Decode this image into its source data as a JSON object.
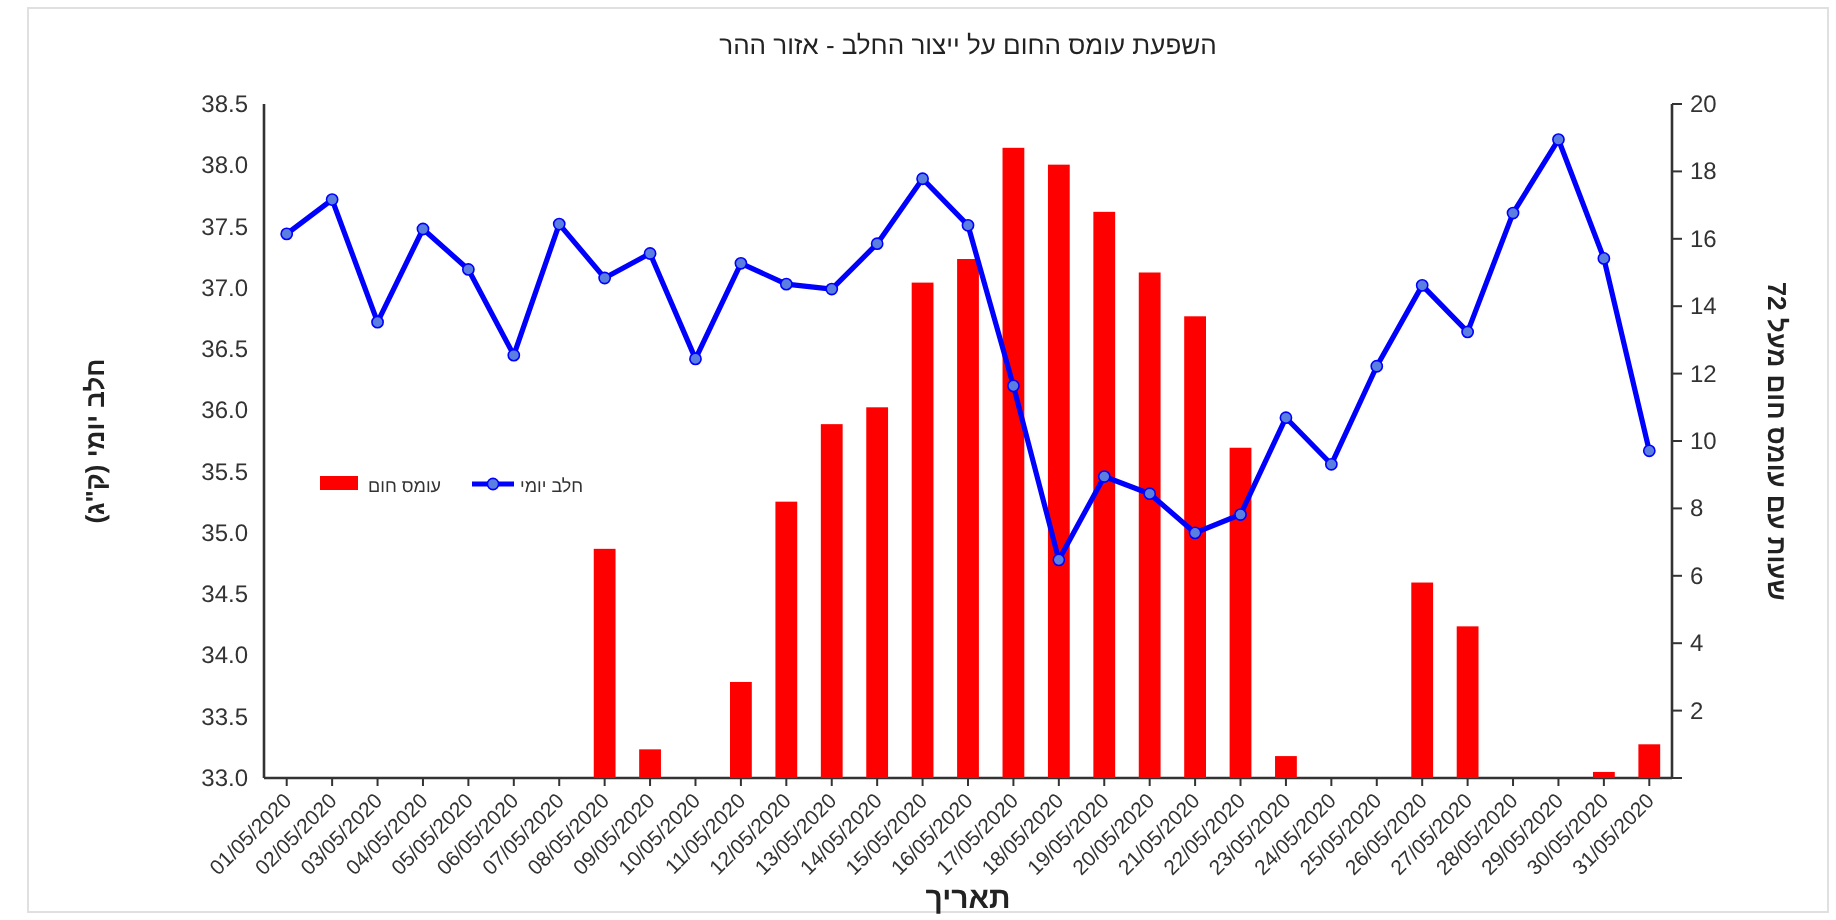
{
  "chart_data": {
    "type": "bar",
    "title": "השפעת עומס החום על ייצור החלב  - אזור ההר",
    "xlabel": "תאריך",
    "ylabel": "חלב יומי (ק\"ג)",
    "y2label": "שעות עם עומס חום מעל 72",
    "categories": [
      "01/05/2020",
      "02/05/2020",
      "03/05/2020",
      "04/05/2020",
      "05/05/2020",
      "06/05/2020",
      "07/05/2020",
      "08/05/2020",
      "09/05/2020",
      "10/05/2020",
      "11/05/2020",
      "12/05/2020",
      "13/05/2020",
      "14/05/2020",
      "15/05/2020",
      "16/05/2020",
      "17/05/2020",
      "18/05/2020",
      "19/05/2020",
      "20/05/2020",
      "21/05/2020",
      "22/05/2020",
      "23/05/2020",
      "24/05/2020",
      "25/05/2020",
      "26/05/2020",
      "27/05/2020",
      "28/05/2020",
      "29/05/2020",
      "30/05/2020",
      "31/05/2020"
    ],
    "series": [
      {
        "name": "עומס חום",
        "axis": "y2",
        "color": "#ff0000",
        "values": [
          0,
          0,
          0,
          0,
          0,
          0,
          0,
          6.8,
          0.85,
          0,
          2.85,
          8.2,
          10.5,
          11.0,
          14.7,
          15.4,
          18.7,
          18.2,
          16.8,
          15.0,
          13.7,
          9.8,
          0.65,
          0,
          0,
          5.8,
          4.5,
          0,
          0,
          0.18,
          1.0
        ]
      },
      {
        "name": "חלב יומי",
        "type": "line",
        "color": "#0000ff",
        "values": [
          37.44,
          37.72,
          36.72,
          37.48,
          37.15,
          36.45,
          37.52,
          37.08,
          37.28,
          36.42,
          37.2,
          37.03,
          36.99,
          37.36,
          37.89,
          37.51,
          36.2,
          34.78,
          35.46,
          35.32,
          35.0,
          35.15,
          35.94,
          35.56,
          36.36,
          37.02,
          36.64,
          37.61,
          38.21,
          37.24,
          35.67
        ]
      }
    ],
    "ylim": [
      33.0,
      38.5
    ],
    "yticks": [
      {
        "value": 33,
        "label": "33.0"
      },
      {
        "value": 33.5,
        "label": "33.5"
      },
      {
        "value": 34,
        "label": "34.0"
      },
      {
        "value": 34.5,
        "label": "34.5"
      },
      {
        "value": 35,
        "label": "35.0"
      },
      {
        "value": 35.5,
        "label": "35.5"
      },
      {
        "value": 36,
        "label": "36.0"
      },
      {
        "value": 36.5,
        "label": "36.5"
      },
      {
        "value": 37,
        "label": "37.0"
      },
      {
        "value": 37.5,
        "label": "37.5"
      },
      {
        "value": 38,
        "label": "38.0"
      },
      {
        "value": 38.5,
        "label": "38.5"
      }
    ],
    "y2lim": [
      0,
      20
    ],
    "y2ticks": [
      {
        "value": 0,
        "label": null
      },
      2,
      4,
      6,
      8,
      10,
      12,
      14,
      16,
      18,
      20
    ],
    "marker": "circle",
    "legend": "left"
  }
}
